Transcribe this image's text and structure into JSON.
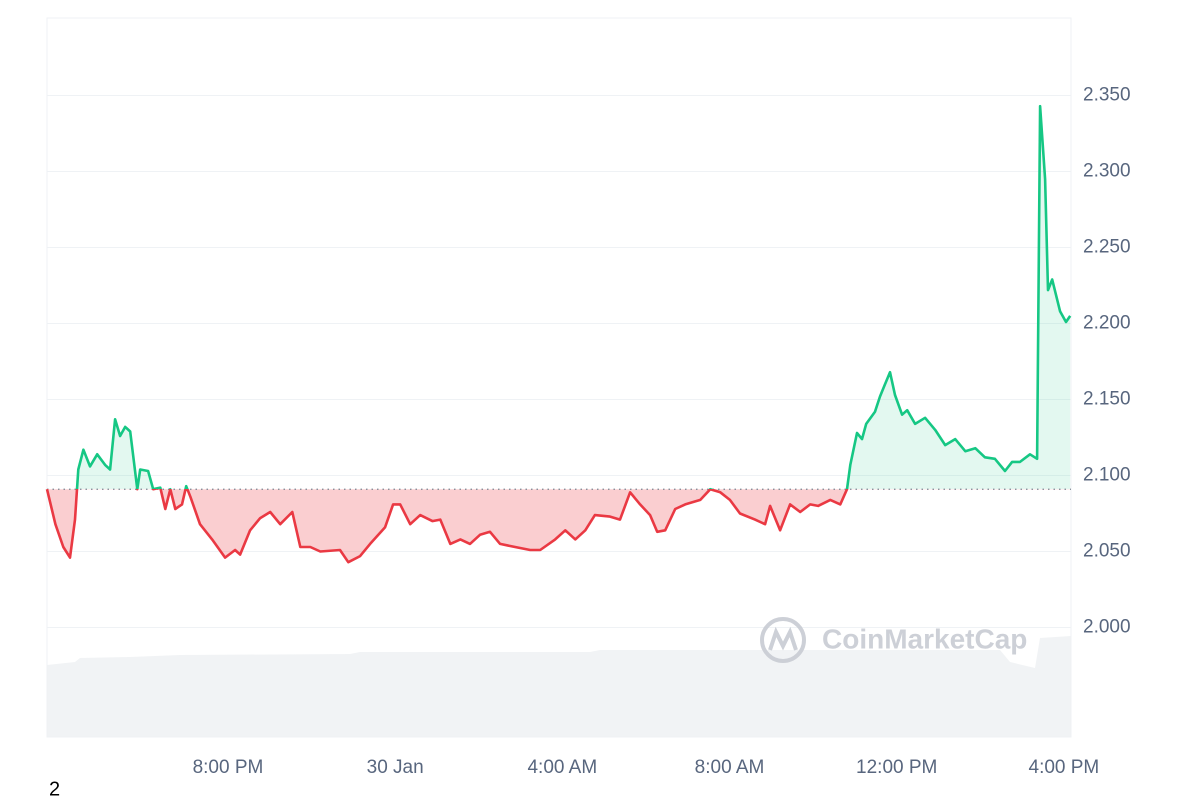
{
  "chart_data": {
    "type": "line",
    "x": [
      -8.33,
      -8.13,
      -7.94,
      -7.78,
      -7.66,
      -7.58,
      -7.46,
      -7.3,
      -7.13,
      -6.94,
      -6.82,
      -6.7,
      -6.58,
      -6.46,
      -6.34,
      -6.17,
      -6.1,
      -5.91,
      -5.79,
      -5.62,
      -5.5,
      -5.38,
      -5.26,
      -5.1,
      -5.0,
      -4.9,
      -4.67,
      -4.38,
      -4.07,
      -3.83,
      -3.71,
      -3.47,
      -3.23,
      -2.99,
      -2.75,
      -2.46,
      -2.27,
      -2.03,
      -1.79,
      -1.32,
      -1.12,
      -0.84,
      -0.6,
      -0.24,
      -0.05,
      0.12,
      0.36,
      0.6,
      0.89,
      1.08,
      1.32,
      1.56,
      1.79,
      2.03,
      2.27,
      2.51,
      2.87,
      3.23,
      3.47,
      3.83,
      4.07,
      4.31,
      4.55,
      4.78,
      5.14,
      5.38,
      5.62,
      5.86,
      6.1,
      6.27,
      6.46,
      6.7,
      6.94,
      7.3,
      7.54,
      7.78,
      8.01,
      8.25,
      8.61,
      8.85,
      8.97,
      9.21,
      9.45,
      9.69,
      9.93,
      10.12,
      10.41,
      10.65,
      10.81,
      10.89,
      11.05,
      11.17,
      11.27,
      11.48,
      11.6,
      11.72,
      11.84,
      11.96,
      12.13,
      12.25,
      12.44,
      12.68,
      12.92,
      13.16,
      13.4,
      13.64,
      13.88,
      14.11,
      14.35,
      14.59,
      14.76,
      14.95,
      15.19,
      15.36,
      15.43,
      15.55,
      15.62,
      15.72,
      15.91,
      16.05,
      16.15
    ],
    "series": [
      {
        "up_color": "#16c784",
        "down_color": "#ea3943",
        "values": [
          2.091,
          2.068,
          2.053,
          2.046,
          2.071,
          2.104,
          2.117,
          2.106,
          2.114,
          2.107,
          2.104,
          2.137,
          2.126,
          2.132,
          2.129,
          2.091,
          2.104,
          2.103,
          2.091,
          2.092,
          2.078,
          2.091,
          2.078,
          2.081,
          2.093,
          2.086,
          2.068,
          2.058,
          2.046,
          2.051,
          2.048,
          2.064,
          2.072,
          2.076,
          2.068,
          2.076,
          2.053,
          2.053,
          2.05,
          2.051,
          2.043,
          2.047,
          2.055,
          2.066,
          2.081,
          2.081,
          2.068,
          2.074,
          2.07,
          2.071,
          2.055,
          2.058,
          2.055,
          2.061,
          2.063,
          2.055,
          2.053,
          2.051,
          2.051,
          2.058,
          2.064,
          2.058,
          2.064,
          2.074,
          2.073,
          2.071,
          2.089,
          2.081,
          2.074,
          2.063,
          2.064,
          2.078,
          2.081,
          2.084,
          2.091,
          2.089,
          2.084,
          2.075,
          2.071,
          2.068,
          2.08,
          2.064,
          2.081,
          2.076,
          2.081,
          2.08,
          2.084,
          2.081,
          2.091,
          2.107,
          2.128,
          2.124,
          2.134,
          2.142,
          2.152,
          2.16,
          2.168,
          2.153,
          2.14,
          2.143,
          2.134,
          2.138,
          2.13,
          2.12,
          2.124,
          2.116,
          2.118,
          2.112,
          2.111,
          2.103,
          2.109,
          2.109,
          2.114,
          2.111,
          2.343,
          2.295,
          2.222,
          2.229,
          2.208,
          2.201,
          2.205
        ]
      }
    ],
    "baseline": 2.091,
    "xlim": [
      -8.33,
      16.17
    ],
    "ylim": [
      1.928,
      2.401
    ],
    "yticks": [
      {
        "value": 2.0,
        "label": "2.000"
      },
      {
        "value": 2.05,
        "label": "2.050"
      },
      {
        "value": 2.1,
        "label": "2.100"
      },
      {
        "value": 2.15,
        "label": "2.150"
      },
      {
        "value": 2.2,
        "label": "2.200"
      },
      {
        "value": 2.25,
        "label": "2.250"
      },
      {
        "value": 2.3,
        "label": "2.300"
      },
      {
        "value": 2.35,
        "label": "2.350"
      }
    ],
    "xticks": [
      {
        "value": -4,
        "label": "8:00 PM"
      },
      {
        "value": 0,
        "label": "30 Jan"
      },
      {
        "value": 4,
        "label": "4:00 AM"
      },
      {
        "value": 8,
        "label": "8:00 AM"
      },
      {
        "value": 12,
        "label": "12:00 PM"
      },
      {
        "value": 16,
        "label": "4:00 PM"
      }
    ],
    "grid": true,
    "watermark": "CoinMarketCap",
    "corner_text": "2"
  }
}
